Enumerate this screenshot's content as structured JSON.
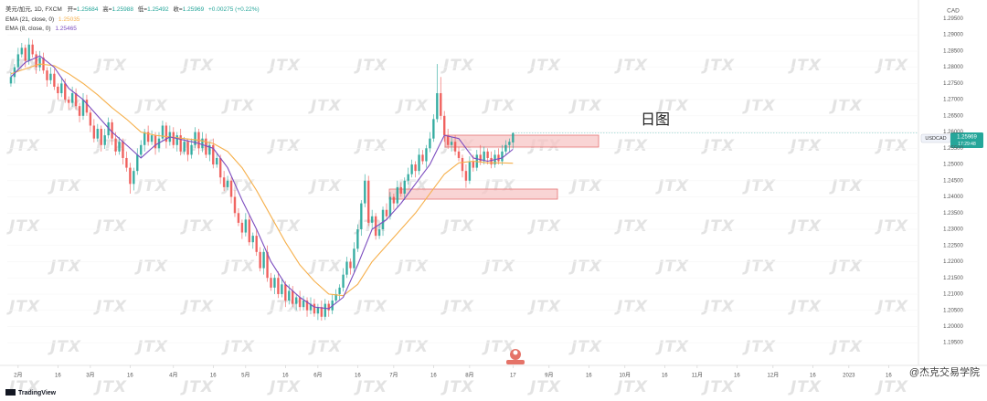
{
  "chart_data": {
    "type": "candlestick",
    "symbol": "美元/加元, 1D, FXCM",
    "stats": [
      {
        "label": "开=",
        "value": 1.25684
      },
      {
        "label": "高=",
        "value": 1.25988
      },
      {
        "label": "低=",
        "value": 1.25492
      },
      {
        "label": "收=",
        "value": 1.25969
      }
    ],
    "change": "+0.00275 (+0.22%)",
    "up_color": "#26a69a",
    "down_color": "#ef5350",
    "x": [
      -2,
      -1,
      0,
      1,
      2,
      3,
      4,
      5,
      6,
      7,
      8,
      9,
      10,
      11,
      12,
      13,
      14,
      15,
      16,
      17,
      18,
      19,
      20,
      21,
      22,
      23,
      24,
      25,
      26,
      27,
      28,
      29,
      30,
      31,
      32,
      33,
      34,
      35,
      36,
      37,
      38,
      39,
      40,
      41,
      42,
      43,
      44,
      45,
      46,
      47,
      48,
      49,
      50,
      51,
      52,
      53,
      54,
      55,
      56,
      57,
      58,
      59,
      60,
      61,
      62,
      63,
      64,
      65,
      66,
      67,
      68,
      69,
      70,
      71,
      72,
      73,
      74,
      75,
      76,
      77,
      78,
      79,
      80,
      81,
      82,
      83,
      84,
      85,
      86,
      87,
      88,
      89,
      90,
      91,
      92,
      93,
      94,
      95,
      96,
      97,
      98,
      99,
      100,
      101,
      102,
      103,
      104,
      105,
      106,
      107,
      108,
      109,
      110,
      111,
      112,
      113,
      114,
      115,
      116,
      117,
      118,
      119,
      120,
      121,
      122,
      123,
      124,
      125,
      126,
      127,
      128,
      129,
      130,
      131,
      132,
      133,
      134,
      135,
      136,
      137
    ],
    "open": [
      1.275,
      1.277,
      1.28,
      1.284,
      1.286,
      1.282,
      1.287,
      1.284,
      1.28,
      1.283,
      1.279,
      1.276,
      1.278,
      1.274,
      1.272,
      1.275,
      1.27,
      1.269,
      1.272,
      1.268,
      1.265,
      1.27,
      1.266,
      1.262,
      1.258,
      1.261,
      1.256,
      1.259,
      1.263,
      1.258,
      1.254,
      1.257,
      1.252,
      1.249,
      1.244,
      1.248,
      1.253,
      1.256,
      1.26,
      1.257,
      1.259,
      1.255,
      1.258,
      1.262,
      1.257,
      1.26,
      1.256,
      1.259,
      1.254,
      1.257,
      1.253,
      1.256,
      1.26,
      1.255,
      1.258,
      1.253,
      1.256,
      1.25,
      1.252,
      1.246,
      1.243,
      1.245,
      1.24,
      1.235,
      1.232,
      1.229,
      1.233,
      1.226,
      1.228,
      1.223,
      1.218,
      1.223,
      1.215,
      1.212,
      1.215,
      1.21,
      1.213,
      1.208,
      1.211,
      1.207,
      1.209,
      1.206,
      1.208,
      1.205,
      1.207,
      1.204,
      1.206,
      1.203,
      1.207,
      1.205,
      1.208,
      1.21,
      1.212,
      1.216,
      1.22,
      1.218,
      1.224,
      1.23,
      1.238,
      1.245,
      1.232,
      1.234,
      1.228,
      1.23,
      1.236,
      1.234,
      1.24,
      1.238,
      1.243,
      1.241,
      1.245,
      1.247,
      1.25,
      1.248,
      1.253,
      1.251,
      1.255,
      1.258,
      1.264,
      1.272,
      1.265,
      1.259,
      1.256,
      1.257,
      1.254,
      1.252,
      1.248,
      1.245,
      1.251,
      1.249,
      1.253,
      1.251,
      1.254,
      1.252,
      1.25,
      1.253,
      1.251,
      1.254,
      1.256,
      1.2568
    ],
    "high": [
      1.2785,
      1.281,
      1.286,
      1.2875,
      1.287,
      1.289,
      1.2885,
      1.285,
      1.285,
      1.2845,
      1.28,
      1.28,
      1.2795,
      1.275,
      1.277,
      1.2765,
      1.271,
      1.274,
      1.2735,
      1.269,
      1.272,
      1.2715,
      1.267,
      1.264,
      1.2625,
      1.262,
      1.261,
      1.2645,
      1.264,
      1.26,
      1.2585,
      1.258,
      1.254,
      1.2505,
      1.249,
      1.255,
      1.2575,
      1.261,
      1.262,
      1.2605,
      1.26,
      1.26,
      1.2635,
      1.263,
      1.262,
      1.2615,
      1.26,
      1.261,
      1.2585,
      1.258,
      1.258,
      1.2615,
      1.261,
      1.26,
      1.2595,
      1.257,
      1.258,
      1.2535,
      1.253,
      1.248,
      1.2465,
      1.246,
      1.242,
      1.2365,
      1.233,
      1.235,
      1.2345,
      1.229,
      1.23,
      1.2245,
      1.224,
      1.225,
      1.2165,
      1.216,
      1.217,
      1.2145,
      1.214,
      1.213,
      1.2125,
      1.21,
      1.211,
      1.2095,
      1.209,
      1.209,
      1.2085,
      1.207,
      1.208,
      1.2085,
      1.208,
      1.21,
      1.2115,
      1.213,
      1.218,
      1.2215,
      1.221,
      1.226,
      1.2315,
      1.239,
      1.247,
      1.2465,
      1.236,
      1.235,
      1.2315,
      1.237,
      1.238,
      1.2415,
      1.241,
      1.245,
      1.2445,
      1.246,
      1.249,
      1.2515,
      1.251,
      1.255,
      1.2545,
      1.256,
      1.26,
      1.2655,
      1.281,
      1.277,
      1.2665,
      1.261,
      1.2585,
      1.259,
      1.2555,
      1.253,
      1.25,
      1.2525,
      1.253,
      1.2545,
      1.256,
      1.2555,
      1.255,
      1.254,
      1.2545,
      1.255,
      1.256,
      1.2575,
      1.258,
      1.2599
    ],
    "low": [
      1.274,
      1.275,
      1.2788,
      1.283,
      1.28,
      1.2808,
      1.283,
      1.278,
      1.2788,
      1.278,
      1.274,
      1.2748,
      1.273,
      1.27,
      1.2708,
      1.269,
      1.267,
      1.2678,
      1.267,
      1.263,
      1.2638,
      1.265,
      1.26,
      1.2568,
      1.257,
      1.254,
      1.2548,
      1.258,
      1.256,
      1.2528,
      1.253,
      1.25,
      1.2478,
      1.241,
      1.242,
      1.2468,
      1.252,
      1.254,
      1.2558,
      1.256,
      1.253,
      1.2538,
      1.257,
      1.255,
      1.2558,
      1.255,
      1.254,
      1.2528,
      1.253,
      1.251,
      1.2518,
      1.255,
      1.253,
      1.2538,
      1.252,
      1.251,
      1.2488,
      1.249,
      1.244,
      1.2418,
      1.242,
      1.238,
      1.2338,
      1.231,
      1.227,
      1.2278,
      1.225,
      1.224,
      1.2218,
      1.217,
      1.216,
      1.2138,
      1.211,
      1.21,
      1.2088,
      1.209,
      1.206,
      1.2068,
      1.206,
      1.205,
      1.2048,
      1.205,
      1.203,
      1.2038,
      1.203,
      1.202,
      1.2018,
      1.202,
      1.203,
      1.2038,
      1.207,
      1.208,
      1.2108,
      1.215,
      1.216,
      1.2168,
      1.223,
      1.228,
      1.2368,
      1.231,
      1.23,
      1.2268,
      1.227,
      1.228,
      1.2328,
      1.233,
      1.236,
      1.2368,
      1.24,
      1.239,
      1.2438,
      1.246,
      1.246,
      1.2468,
      1.25,
      1.249,
      1.2538,
      1.257,
      1.263,
      1.2638,
      1.257,
      1.2548,
      1.254,
      1.2528,
      1.251,
      1.246,
      1.2428,
      1.244,
      1.2478,
      1.248,
      1.2498,
      1.25,
      1.25,
      1.2488,
      1.249,
      1.25,
      1.2498,
      1.253,
      1.254,
      1.2549
    ],
    "close": [
      1.277,
      1.28,
      1.284,
      1.286,
      1.282,
      1.287,
      1.284,
      1.28,
      1.283,
      1.279,
      1.276,
      1.278,
      1.274,
      1.272,
      1.275,
      1.27,
      1.269,
      1.272,
      1.268,
      1.265,
      1.27,
      1.266,
      1.262,
      1.258,
      1.261,
      1.256,
      1.259,
      1.263,
      1.258,
      1.254,
      1.257,
      1.252,
      1.249,
      1.244,
      1.248,
      1.253,
      1.256,
      1.26,
      1.257,
      1.259,
      1.255,
      1.258,
      1.262,
      1.257,
      1.26,
      1.256,
      1.259,
      1.254,
      1.257,
      1.253,
      1.256,
      1.26,
      1.255,
      1.258,
      1.253,
      1.256,
      1.25,
      1.252,
      1.246,
      1.243,
      1.245,
      1.24,
      1.235,
      1.232,
      1.229,
      1.233,
      1.226,
      1.228,
      1.223,
      1.218,
      1.223,
      1.215,
      1.212,
      1.215,
      1.21,
      1.213,
      1.208,
      1.211,
      1.207,
      1.209,
      1.206,
      1.208,
      1.205,
      1.207,
      1.204,
      1.206,
      1.203,
      1.207,
      1.205,
      1.208,
      1.21,
      1.212,
      1.216,
      1.22,
      1.218,
      1.224,
      1.23,
      1.238,
      1.245,
      1.232,
      1.234,
      1.228,
      1.23,
      1.236,
      1.234,
      1.24,
      1.238,
      1.243,
      1.241,
      1.245,
      1.247,
      1.25,
      1.248,
      1.253,
      1.251,
      1.255,
      1.258,
      1.264,
      1.272,
      1.265,
      1.259,
      1.256,
      1.257,
      1.254,
      1.252,
      1.248,
      1.245,
      1.251,
      1.249,
      1.253,
      1.251,
      1.254,
      1.252,
      1.25,
      1.253,
      1.251,
      1.254,
      1.256,
      1.257,
      1.2597
    ],
    "indicators": [
      {
        "name": "EMA (21, close, 0)",
        "color": "#f6b04c",
        "last": 1.25035,
        "x": [
          -2,
          2,
          6,
          10,
          14,
          18,
          22,
          26,
          30,
          34,
          38,
          42,
          46,
          50,
          54,
          58,
          62,
          66,
          70,
          74,
          78,
          82,
          86,
          90,
          94,
          98,
          102,
          106,
          110,
          114,
          118,
          122,
          126,
          130,
          134,
          137
        ],
        "values": [
          1.278,
          1.2795,
          1.281,
          1.2805,
          1.278,
          1.275,
          1.2715,
          1.2675,
          1.264,
          1.26,
          1.259,
          1.2585,
          1.258,
          1.2575,
          1.2565,
          1.254,
          1.249,
          1.242,
          1.234,
          1.226,
          1.219,
          1.214,
          1.21,
          1.2095,
          1.213,
          1.22,
          1.225,
          1.23,
          1.235,
          1.241,
          1.247,
          1.2505,
          1.251,
          1.2505,
          1.2505,
          1.2504
        ]
      },
      {
        "name": "EMA (8, close, 0)",
        "color": "#7c4dbf",
        "last": 1.25465,
        "x": [
          -2,
          2,
          6,
          10,
          14,
          18,
          22,
          26,
          30,
          34,
          38,
          42,
          46,
          50,
          54,
          58,
          62,
          66,
          70,
          74,
          78,
          82,
          86,
          90,
          94,
          98,
          102,
          106,
          110,
          114,
          118,
          122,
          126,
          130,
          134,
          137
        ],
        "values": [
          1.277,
          1.2815,
          1.2835,
          1.28,
          1.2735,
          1.27,
          1.265,
          1.26,
          1.256,
          1.252,
          1.256,
          1.2585,
          1.2575,
          1.2565,
          1.255,
          1.249,
          1.239,
          1.23,
          1.22,
          1.213,
          1.209,
          1.206,
          1.2055,
          1.209,
          1.219,
          1.23,
          1.233,
          1.238,
          1.244,
          1.25,
          1.259,
          1.258,
          1.252,
          1.251,
          1.252,
          1.2547
        ]
      }
    ],
    "ylim": [
      1.188,
      1.2985
    ],
    "yticks": [
      {
        "value": 1.295,
        "label": "1.29500"
      },
      {
        "value": 1.29,
        "label": "1.29000"
      },
      {
        "value": 1.285,
        "label": "1.28500"
      },
      {
        "value": 1.28,
        "label": "1.28000"
      },
      {
        "value": 1.275,
        "label": "1.27500"
      },
      {
        "value": 1.27,
        "label": "1.27000"
      },
      {
        "value": 1.265,
        "label": "1.26500"
      },
      {
        "value": 1.26,
        "label": "1.26000"
      },
      {
        "value": 1.255,
        "label": "1.25500"
      },
      {
        "value": 1.25,
        "label": "1.25000"
      },
      {
        "value": 1.245,
        "label": "1.24500"
      },
      {
        "value": 1.24,
        "label": "1.24000"
      },
      {
        "value": 1.235,
        "label": "1.23500"
      },
      {
        "value": 1.23,
        "label": "1.23000"
      },
      {
        "value": 1.225,
        "label": "1.22500"
      },
      {
        "value": 1.22,
        "label": "1.22000"
      },
      {
        "value": 1.215,
        "label": "1.21500"
      },
      {
        "value": 1.21,
        "label": "1.21000"
      },
      {
        "value": 1.205,
        "label": "1.20500"
      },
      {
        "value": 1.2,
        "label": "1.20000"
      },
      {
        "value": 1.195,
        "label": "1.19500"
      }
    ],
    "xlim": [
      -3,
      248
    ],
    "xticks": [
      {
        "value": 0,
        "label": "2月"
      },
      {
        "value": 11,
        "label": "16"
      },
      {
        "value": 20,
        "label": "3月"
      },
      {
        "value": 31,
        "label": "16"
      },
      {
        "value": 43,
        "label": "4月"
      },
      {
        "value": 54,
        "label": "16"
      },
      {
        "value": 63,
        "label": "5月"
      },
      {
        "value": 74,
        "label": "16"
      },
      {
        "value": 83,
        "label": "6月"
      },
      {
        "value": 94,
        "label": "16"
      },
      {
        "value": 104,
        "label": "7月"
      },
      {
        "value": 115,
        "label": "16"
      },
      {
        "value": 125,
        "label": "8月"
      },
      {
        "value": 137,
        "label": "17"
      },
      {
        "value": 147,
        "label": "9月"
      },
      {
        "value": 158,
        "label": "16"
      },
      {
        "value": 168,
        "label": "10月"
      },
      {
        "value": 179,
        "label": "16"
      },
      {
        "value": 188,
        "label": "11月"
      },
      {
        "value": 199,
        "label": "16"
      },
      {
        "value": 209,
        "label": "12月"
      },
      {
        "value": 220,
        "label": "16"
      },
      {
        "value": 230,
        "label": "2023"
      },
      {
        "value": 241,
        "label": "16"
      }
    ],
    "currency": "CAD",
    "last_price": {
      "symbol": "USDCAD",
      "value": 1.25969,
      "countdown": "17:29:48"
    },
    "annotation": "日图",
    "watermark": "JTX",
    "footer": "TradingView",
    "credit": "@杰克交易学院"
  }
}
